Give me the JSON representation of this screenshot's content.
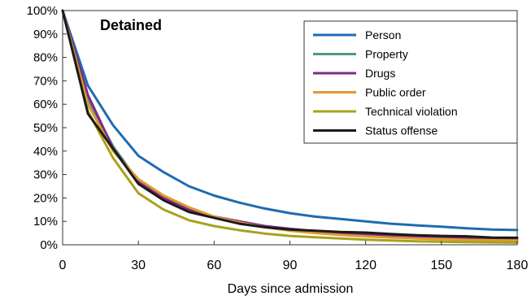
{
  "chart_data": {
    "type": "line",
    "title": "Detained",
    "xlabel": "Days since admission",
    "ylabel": "",
    "xlim": [
      0,
      180
    ],
    "ylim": [
      0,
      100
    ],
    "x_ticks": [
      0,
      30,
      60,
      90,
      120,
      150,
      180
    ],
    "y_ticks": [
      0,
      10,
      20,
      30,
      40,
      50,
      60,
      70,
      80,
      90,
      100
    ],
    "y_tick_labels": [
      "0%",
      "10%",
      "20%",
      "30%",
      "40%",
      "50%",
      "60%",
      "70%",
      "80%",
      "90%",
      "100%"
    ],
    "grid": false,
    "legend_position": "top-right",
    "x": [
      0,
      10,
      20,
      30,
      40,
      50,
      60,
      70,
      80,
      90,
      100,
      110,
      120,
      130,
      140,
      150,
      160,
      170,
      180
    ],
    "series": [
      {
        "name": "Person",
        "color": "#1f6bb0",
        "values": [
          100,
          68,
          51,
          38,
          31,
          25,
          21,
          18,
          15.5,
          13.5,
          12,
          11,
          10,
          9,
          8.3,
          7.7,
          7,
          6.5,
          6.3
        ]
      },
      {
        "name": "Property",
        "color": "#4a9a86",
        "values": [
          100,
          62,
          42,
          27,
          20,
          15,
          12,
          9.5,
          8,
          6.5,
          5.5,
          4.8,
          4.2,
          3.7,
          3.3,
          3,
          2.7,
          2.4,
          2.3
        ]
      },
      {
        "name": "Drugs",
        "color": "#7d2a8a",
        "values": [
          100,
          64,
          41,
          27,
          20,
          15,
          12,
          10,
          8,
          6.8,
          5.8,
          5,
          4.3,
          3.8,
          3.3,
          3,
          2.7,
          2.4,
          2.2
        ]
      },
      {
        "name": "Public order",
        "color": "#e09a2e",
        "values": [
          100,
          60,
          40,
          28,
          21,
          16,
          12,
          9.5,
          7.5,
          6,
          5,
          4.2,
          3.6,
          3.1,
          2.7,
          2.4,
          2.1,
          1.9,
          1.8
        ]
      },
      {
        "name": "Technical violation",
        "color": "#a8a21c",
        "values": [
          100,
          57,
          37,
          22,
          15,
          10.5,
          8,
          6.2,
          4.8,
          3.8,
          3.2,
          2.7,
          2.2,
          1.8,
          1.5,
          1.3,
          1.1,
          1,
          0.9
        ]
      },
      {
        "name": "Status offense",
        "color": "#1a1a1a",
        "values": [
          100,
          56,
          41,
          26,
          19,
          14,
          11.5,
          9,
          7.5,
          6.5,
          6,
          5.5,
          5.2,
          4.6,
          4.1,
          3.8,
          3.6,
          3.1,
          3
        ]
      }
    ]
  }
}
